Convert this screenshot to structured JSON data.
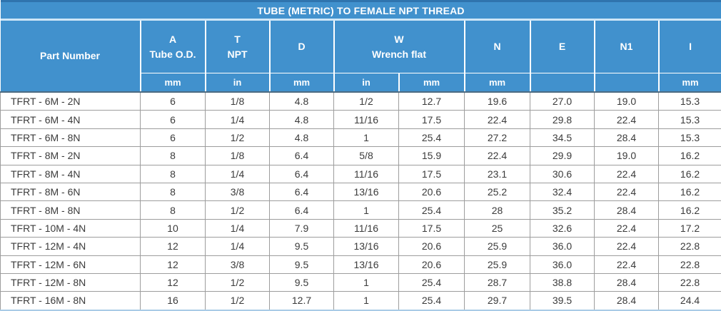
{
  "chart_data": {
    "type": "table",
    "title": "TUBE (METRIC) TO FEMALE NPT THREAD",
    "header": {
      "part_number_label": "Part Number",
      "groups": [
        {
          "label": "A\nTube O.D.",
          "columns": 1
        },
        {
          "label": "T\nNPT",
          "columns": 1
        },
        {
          "label": "D",
          "columns": 1
        },
        {
          "label": "W\nWrench flat",
          "columns": 2
        },
        {
          "label": "N",
          "columns": 1
        },
        {
          "label": "E",
          "columns": 1
        },
        {
          "label": "N1",
          "columns": 1
        },
        {
          "label": "I",
          "columns": 1
        }
      ],
      "units": [
        "mm",
        "in",
        "mm",
        "in",
        "mm",
        "mm",
        "",
        "",
        "mm"
      ]
    },
    "rows": [
      [
        "TFRT - 6M - 2N",
        "6",
        "1/8",
        "4.8",
        "1/2",
        "12.7",
        "19.6",
        "27.0",
        "19.0",
        "15.3"
      ],
      [
        "TFRT - 6M - 4N",
        "6",
        "1/4",
        "4.8",
        "11/16",
        "17.5",
        "22.4",
        "29.8",
        "22.4",
        "15.3"
      ],
      [
        "TFRT - 6M - 8N",
        "6",
        "1/2",
        "4.8",
        "1",
        "25.4",
        "27.2",
        "34.5",
        "28.4",
        "15.3"
      ],
      [
        "TFRT - 8M - 2N",
        "8",
        "1/8",
        "6.4",
        "5/8",
        "15.9",
        "22.4",
        "29.9",
        "19.0",
        "16.2"
      ],
      [
        "TFRT - 8M - 4N",
        "8",
        "1/4",
        "6.4",
        "11/16",
        "17.5",
        "23.1",
        "30.6",
        "22.4",
        "16.2"
      ],
      [
        "TFRT - 8M - 6N",
        "8",
        "3/8",
        "6.4",
        "13/16",
        "20.6",
        "25.2",
        "32.4",
        "22.4",
        "16.2"
      ],
      [
        "TFRT - 8M - 8N",
        "8",
        "1/2",
        "6.4",
        "1",
        "25.4",
        "28",
        "35.2",
        "28.4",
        "16.2"
      ],
      [
        "TFRT - 10M - 4N",
        "10",
        "1/4",
        "7.9",
        "11/16",
        "17.5",
        "25",
        "32.6",
        "22.4",
        "17.2"
      ],
      [
        "TFRT - 12M - 4N",
        "12",
        "1/4",
        "9.5",
        "13/16",
        "20.6",
        "25.9",
        "36.0",
        "22.4",
        "22.8"
      ],
      [
        "TFRT - 12M - 6N",
        "12",
        "3/8",
        "9.5",
        "13/16",
        "20.6",
        "25.9",
        "36.0",
        "22.4",
        "22.8"
      ],
      [
        "TFRT - 12M - 8N",
        "12",
        "1/2",
        "9.5",
        "1",
        "25.4",
        "28.7",
        "38.8",
        "28.4",
        "22.8"
      ],
      [
        "TFRT - 16M - 8N",
        "16",
        "1/2",
        "12.7",
        "1",
        "25.4",
        "29.7",
        "39.5",
        "28.4",
        "24.4"
      ]
    ]
  },
  "colors": {
    "header_blue": "#4191cd",
    "top_border_blue": "#2f74ae",
    "title_separator_light_blue": "#cfe6f7",
    "header_data_divider": "#4d6b82",
    "grid_line_gray": "#9d9d9d",
    "bottom_border_light_blue": "#a9cbe6",
    "data_text": "#3b3b3b",
    "header_text": "#ffffff"
  }
}
